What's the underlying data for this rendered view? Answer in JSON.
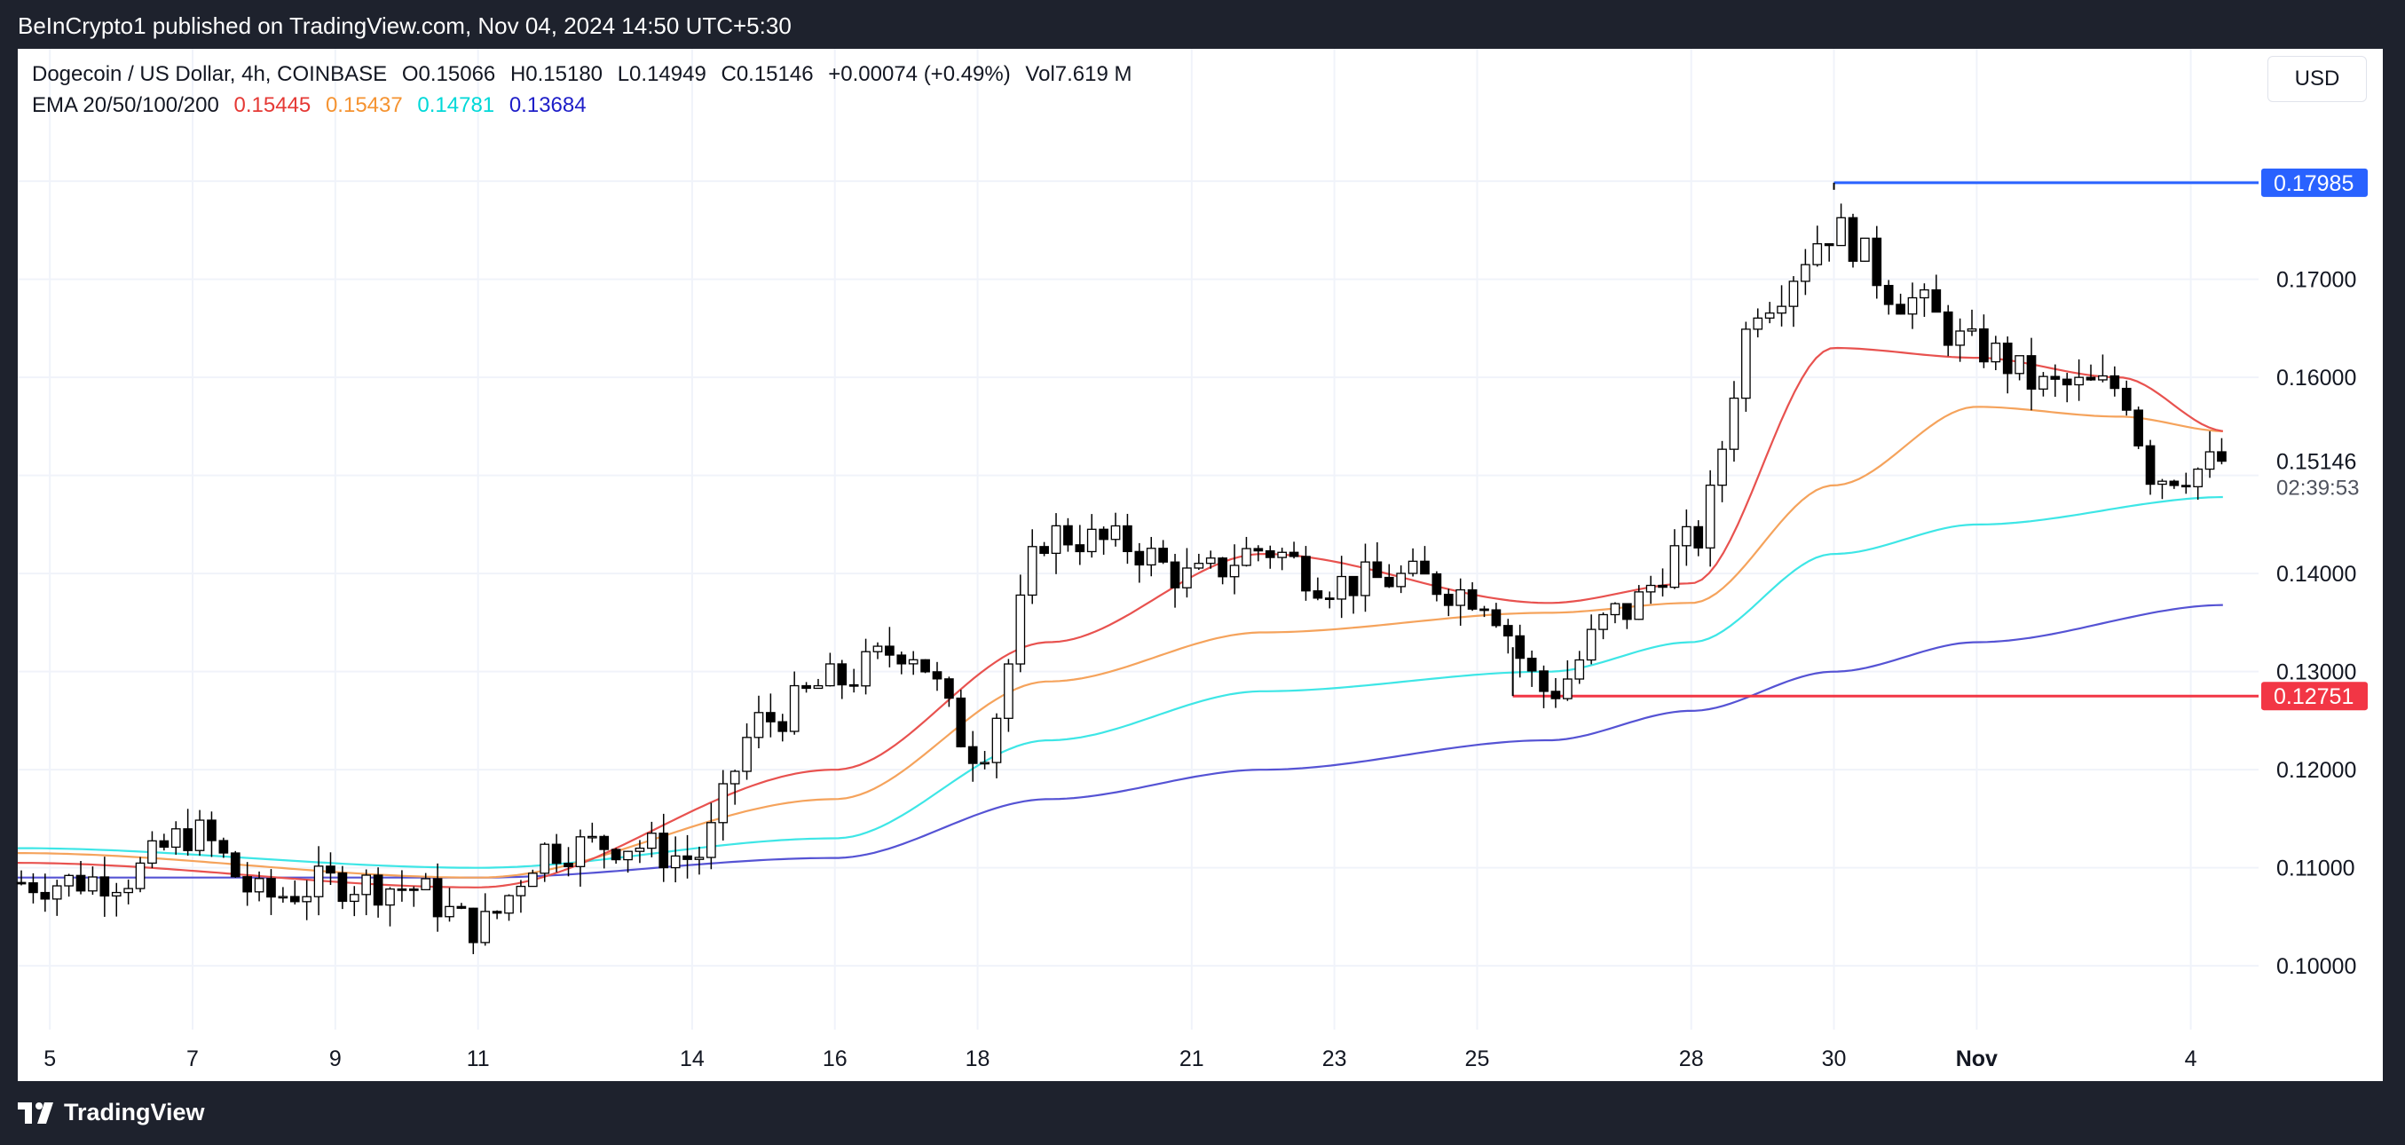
{
  "header": {
    "published": "BeInCrypto1 published on TradingView.com, Nov 04, 2024 14:50 UTC+5:30"
  },
  "legend": {
    "symbol": "Dogecoin / US Dollar, 4h, COINBASE",
    "open": "O0.15066",
    "high": "H0.15180",
    "low": "L0.14949",
    "close": "C0.15146",
    "change": "+0.00074 (+0.49%)",
    "volume": "Vol7.619 M",
    "ema_label": "EMA 20/50/100/200",
    "ema_values": [
      {
        "value": "0.15445",
        "color": "#e53935"
      },
      {
        "value": "0.15437",
        "color": "#f59331"
      },
      {
        "value": "0.14781",
        "color": "#00e0e0"
      },
      {
        "value": "0.13684",
        "color": "#1e1ec8"
      }
    ]
  },
  "currency_button": "USD",
  "footer": {
    "brand": "TradingView"
  },
  "colors": {
    "resistance": "#2962ff",
    "support": "#f23645",
    "ema20": "#e8524f",
    "ema50": "#f5a35c",
    "ema100": "#3ee6e6",
    "ema200": "#5553d4"
  },
  "chart_data": {
    "type": "candlestick",
    "title": "Dogecoin / US Dollar, 4h, COINBASE",
    "ylim": [
      0.0935,
      0.1935
    ],
    "y_ticks": [
      "0.17000",
      "0.16000",
      "0.14000",
      "0.13000",
      "0.12000",
      "0.11000",
      "0.10000"
    ],
    "y_tick_values": [
      0.17,
      0.16,
      0.14,
      0.13,
      0.12,
      0.11,
      0.1
    ],
    "x_ticks": [
      {
        "label": "5",
        "day": 0
      },
      {
        "label": "7",
        "day": 2
      },
      {
        "label": "9",
        "day": 4
      },
      {
        "label": "11",
        "day": 6
      },
      {
        "label": "14",
        "day": 9
      },
      {
        "label": "16",
        "day": 11
      },
      {
        "label": "18",
        "day": 13
      },
      {
        "label": "21",
        "day": 16
      },
      {
        "label": "23",
        "day": 18
      },
      {
        "label": "25",
        "day": 20
      },
      {
        "label": "28",
        "day": 23
      },
      {
        "label": "30",
        "day": 25
      },
      {
        "label": "Nov",
        "day": 27
      },
      {
        "label": "4",
        "day": 30
      }
    ],
    "x_range_days": [
      -0.45,
      30.95
    ],
    "last_price": "0.15146",
    "last_price_value": 0.15146,
    "countdown": "02:39:53",
    "resistance": {
      "label": "0.17985",
      "value": 0.17985,
      "start_day": 25.0
    },
    "support": {
      "label": "0.12751",
      "value": 0.12751,
      "start_day": 20.5
    },
    "close_anchors": [
      [
        0,
        0.1085
      ],
      [
        1,
        0.109
      ],
      [
        2,
        0.1135
      ],
      [
        3,
        0.107
      ],
      [
        4,
        0.1085
      ],
      [
        5,
        0.108
      ],
      [
        6,
        0.104
      ],
      [
        7,
        0.112
      ],
      [
        8,
        0.1125
      ],
      [
        9,
        0.111
      ],
      [
        10,
        0.125
      ],
      [
        11,
        0.129
      ],
      [
        12,
        0.1325
      ],
      [
        13,
        0.122
      ],
      [
        14,
        0.144
      ],
      [
        15,
        0.143
      ],
      [
        16,
        0.1395
      ],
      [
        17,
        0.1425
      ],
      [
        18,
        0.139
      ],
      [
        19,
        0.1395
      ],
      [
        20,
        0.138
      ],
      [
        21,
        0.128
      ],
      [
        22,
        0.136
      ],
      [
        23,
        0.143
      ],
      [
        24,
        0.168
      ],
      [
        25,
        0.175
      ],
      [
        26,
        0.168
      ],
      [
        27,
        0.163
      ],
      [
        28,
        0.159
      ],
      [
        29,
        0.159
      ],
      [
        29.5,
        0.15
      ],
      [
        30,
        0.1505
      ],
      [
        30.5,
        0.1515
      ]
    ],
    "ema_anchors": {
      "ema20": [
        [
          -0.45,
          0.1105
        ],
        [
          6,
          0.108
        ],
        [
          11,
          0.12
        ],
        [
          14,
          0.133
        ],
        [
          17,
          0.142
        ],
        [
          21,
          0.137
        ],
        [
          23,
          0.139
        ],
        [
          25,
          0.163
        ],
        [
          27,
          0.162
        ],
        [
          29,
          0.16
        ],
        [
          30.5,
          0.1545
        ]
      ],
      "ema50": [
        [
          -0.45,
          0.1115
        ],
        [
          6,
          0.109
        ],
        [
          11,
          0.117
        ],
        [
          14,
          0.129
        ],
        [
          17,
          0.134
        ],
        [
          21,
          0.136
        ],
        [
          23,
          0.137
        ],
        [
          25,
          0.149
        ],
        [
          27,
          0.157
        ],
        [
          29,
          0.156
        ],
        [
          30.5,
          0.1545
        ]
      ],
      "ema100": [
        [
          -0.45,
          0.112
        ],
        [
          6,
          0.11
        ],
        [
          11,
          0.113
        ],
        [
          14,
          0.123
        ],
        [
          17,
          0.128
        ],
        [
          21,
          0.13
        ],
        [
          23,
          0.133
        ],
        [
          25,
          0.142
        ],
        [
          27,
          0.145
        ],
        [
          30.5,
          0.1478
        ]
      ],
      "ema200": [
        [
          -0.45,
          0.109
        ],
        [
          6,
          0.109
        ],
        [
          11,
          0.111
        ],
        [
          14,
          0.117
        ],
        [
          17,
          0.12
        ],
        [
          21,
          0.123
        ],
        [
          23,
          0.126
        ],
        [
          25,
          0.13
        ],
        [
          27,
          0.133
        ],
        [
          30.5,
          0.1368
        ]
      ]
    }
  }
}
